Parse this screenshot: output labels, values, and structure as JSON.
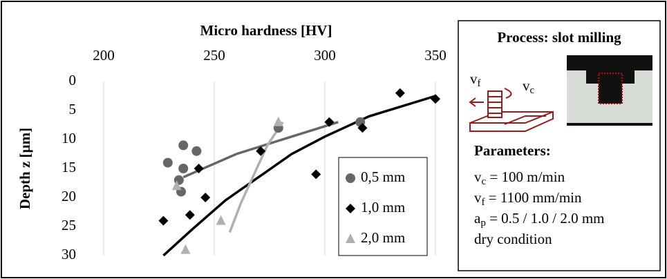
{
  "chart_data": {
    "type": "scatter",
    "x_label": "Micro hardness [HV]",
    "y_label": "Depth z [µm]",
    "xlim": [
      200,
      350
    ],
    "xticks": [
      200,
      250,
      300,
      350
    ],
    "ylim": [
      0,
      30
    ],
    "yticks": [
      0,
      5,
      10,
      15,
      20,
      25,
      30
    ],
    "y_inverted": true,
    "x_axis_top": true,
    "grid": true,
    "legend": "lower right",
    "series": [
      {
        "name": "0,5 mm",
        "marker": "circle",
        "color": "#666666",
        "x": [
          229,
          236,
          236,
          242,
          234,
          235,
          279,
          316
        ],
        "values": [
          14,
          11,
          15,
          12,
          17,
          19,
          8,
          7
        ]
      },
      {
        "name": "1,0 mm",
        "marker": "diamond",
        "color": "#000000",
        "x": [
          227,
          239,
          243,
          246,
          271,
          302,
          296,
          317,
          334,
          350
        ],
        "values": [
          24,
          23,
          15,
          20,
          12,
          7,
          16,
          8,
          2,
          3
        ]
      },
      {
        "name": "2,0 mm",
        "marker": "triangle",
        "color": "#b0b0b0",
        "x": [
          233,
          253,
          237,
          279
        ],
        "values": [
          18,
          24,
          29,
          7
        ]
      }
    ],
    "trendlines": [
      {
        "color": "#666666",
        "x": [
          236,
          260,
          285,
          306
        ],
        "values": [
          16.5,
          12.5,
          9.5,
          7
        ]
      },
      {
        "color": "#000000",
        "x": [
          227,
          240,
          255,
          270,
          285,
          300,
          320,
          350
        ],
        "values": [
          30,
          25.5,
          20.5,
          16.5,
          12.5,
          9.5,
          6,
          2.5
        ]
      },
      {
        "color": "#b0b0b0",
        "x": [
          257,
          262,
          268,
          274,
          281
        ],
        "values": [
          26,
          21,
          16,
          11,
          7
        ]
      }
    ]
  },
  "panel": {
    "title": "Process: slot milling",
    "vf": {
      "symbol": "v",
      "sub": "f"
    },
    "vc": {
      "symbol": "v",
      "sub": "c"
    },
    "parameters_title": "Parameters:",
    "parameters": [
      {
        "symbol": "v",
        "sub": "c",
        "text": " = 100 m/min"
      },
      {
        "symbol": "v",
        "sub": "f",
        "text": " = 1100 mm/min"
      },
      {
        "symbol": "a",
        "sub": "p",
        "text": " = 0.5 / 1.0 / 2.0 mm"
      },
      {
        "symbol": "dry condition",
        "sub": "",
        "text": ""
      }
    ]
  }
}
